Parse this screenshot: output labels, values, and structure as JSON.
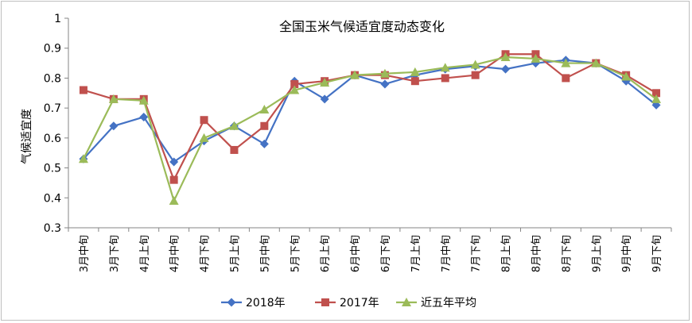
{
  "chart_data": {
    "type": "line",
    "title": "全国玉米气候适宜度动态变化",
    "xlabel": "",
    "ylabel": "气候适宜度",
    "ylim": [
      0.3,
      1
    ],
    "yticks": [
      "0.3",
      "0.4",
      "0.5",
      "0.6",
      "0.7",
      "0.8",
      "0.9",
      "1"
    ],
    "grid": false,
    "legend": "bottom",
    "categories": [
      "3月中旬",
      "3月下旬",
      "4月上旬",
      "4月中旬",
      "4月下旬",
      "5月上旬",
      "5月中旬",
      "5月下旬",
      "6月上旬",
      "6月中旬",
      "6月下旬",
      "7月上旬",
      "7月中旬",
      "7月下旬",
      "8月上旬",
      "8月中旬",
      "8月下旬",
      "9月上旬",
      "9月中旬",
      "9月下旬"
    ],
    "series": [
      {
        "name": "2018年",
        "color": "#4472c4",
        "marker": "diamond",
        "values": [
          0.53,
          0.64,
          0.67,
          0.52,
          0.59,
          0.64,
          0.58,
          0.79,
          0.73,
          0.81,
          0.78,
          0.81,
          0.83,
          0.84,
          0.83,
          0.85,
          0.86,
          0.85,
          0.79,
          0.71
        ]
      },
      {
        "name": "2017年",
        "color": "#c0504d",
        "marker": "square",
        "values": [
          0.76,
          0.73,
          0.73,
          0.46,
          0.66,
          0.56,
          0.64,
          0.78,
          0.79,
          0.81,
          0.81,
          0.79,
          0.8,
          0.81,
          0.88,
          0.88,
          0.8,
          0.85,
          0.81,
          0.75
        ]
      },
      {
        "name": "近五年平均",
        "color": "#9bbb59",
        "marker": "triangle",
        "values": [
          0.53,
          0.73,
          0.725,
          0.39,
          0.6,
          0.64,
          0.695,
          0.76,
          0.785,
          0.81,
          0.815,
          0.82,
          0.835,
          0.845,
          0.87,
          0.865,
          0.85,
          0.85,
          0.805,
          0.73
        ]
      }
    ]
  }
}
